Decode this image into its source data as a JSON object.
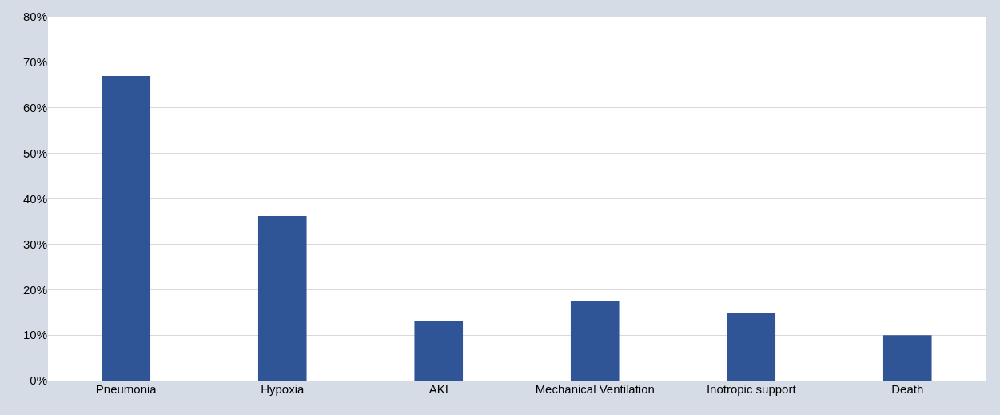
{
  "chart_data": {
    "type": "bar",
    "categories": [
      "Pneumonia",
      "Hypoxia",
      "AKI",
      "Mechanical Ventilation",
      "Inotropic support",
      "Death"
    ],
    "values": [
      67,
      36.2,
      13,
      17.4,
      14.8,
      10
    ],
    "color": "#2f5597",
    "ylim": [
      0,
      80
    ],
    "yticks": [
      {
        "value": 0,
        "label": "0%"
      },
      {
        "value": 10,
        "label": "10%"
      },
      {
        "value": 20,
        "label": "20%"
      },
      {
        "value": 30,
        "label": "30%"
      },
      {
        "value": 40,
        "label": "40%"
      },
      {
        "value": 50,
        "label": "50%"
      },
      {
        "value": 60,
        "label": "60%"
      },
      {
        "value": 70,
        "label": "70%"
      },
      {
        "value": 80,
        "label": "80%"
      }
    ],
    "grid": "y"
  }
}
